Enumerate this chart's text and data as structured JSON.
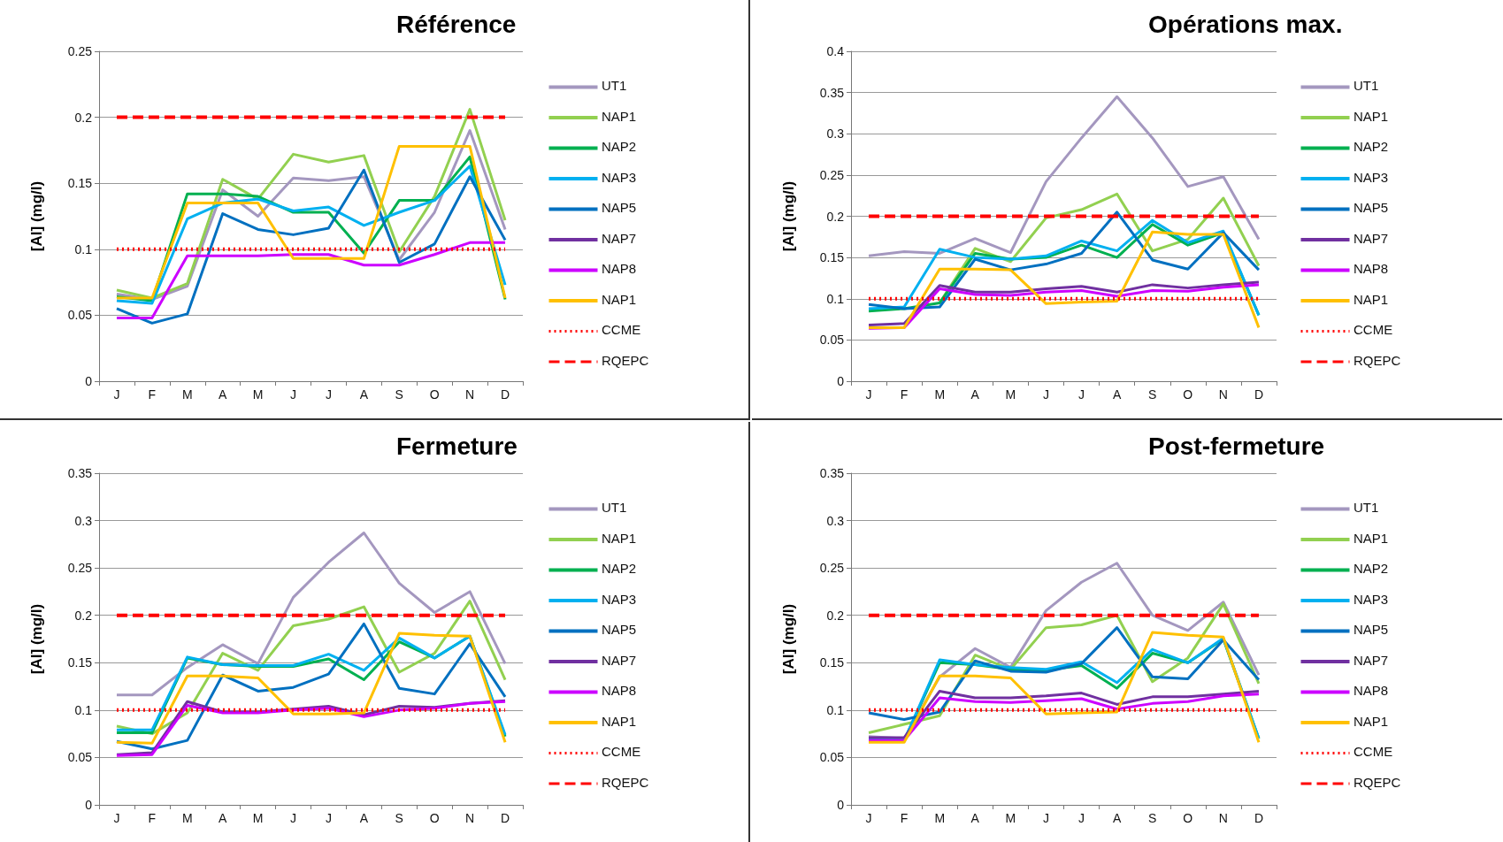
{
  "chart_data": [
    {
      "type": "line",
      "title": "Référence",
      "ylabel": "[Al] (mg/l)",
      "categories": [
        "J",
        "F",
        "M",
        "A",
        "M",
        "J",
        "J",
        "A",
        "S",
        "O",
        "N",
        "D"
      ],
      "ylim": [
        0,
        0.25
      ],
      "yticks": [
        0,
        0.05,
        0.1,
        0.15,
        0.2,
        0.25
      ],
      "grid": "y",
      "legend": "right",
      "series": [
        {
          "name": "UT1",
          "color": "#a497bf",
          "values": [
            0.066,
            0.062,
            0.072,
            0.145,
            0.125,
            0.154,
            0.152,
            0.155,
            0.092,
            0.128,
            0.19,
            0.115
          ]
        },
        {
          "name": "NAP1",
          "color": "#92d050",
          "values": [
            0.069,
            0.063,
            0.074,
            0.153,
            0.138,
            0.172,
            0.166,
            0.171,
            0.098,
            0.14,
            0.206,
            0.122
          ]
        },
        {
          "name": "NAP2",
          "color": "#00b050",
          "values": [
            0.064,
            0.061,
            0.142,
            0.142,
            0.14,
            0.128,
            0.128,
            0.097,
            0.137,
            0.137,
            0.17,
            0.062
          ]
        },
        {
          "name": "NAP3",
          "color": "#00b0f0",
          "values": [
            0.061,
            0.059,
            0.123,
            0.135,
            0.138,
            0.129,
            0.132,
            0.118,
            0.128,
            0.137,
            0.163,
            0.073
          ]
        },
        {
          "name": "NAP5",
          "color": "#0070c0",
          "values": [
            0.055,
            0.044,
            0.051,
            0.127,
            0.115,
            0.111,
            0.116,
            0.16,
            0.09,
            0.104,
            0.155,
            0.107
          ]
        },
        {
          "name": "NAP7",
          "color": "#7030a0",
          "values": [
            null,
            null,
            null,
            null,
            null,
            null,
            null,
            null,
            null,
            null,
            null,
            null
          ]
        },
        {
          "name": "NAP8",
          "color": "#cc00ff",
          "values": [
            0.048,
            0.048,
            0.095,
            0.095,
            0.095,
            0.096,
            0.096,
            0.088,
            0.088,
            0.096,
            0.105,
            0.105
          ]
        },
        {
          "name": "NAP1",
          "color": "#ffc000",
          "values": [
            0.063,
            0.063,
            0.135,
            0.135,
            0.135,
            0.093,
            0.093,
            0.093,
            0.178,
            0.178,
            0.178,
            0.063
          ]
        }
      ],
      "ref_lines": [
        {
          "axis": "y",
          "value": 0.1,
          "label": "CCME",
          "color": "#ff0000",
          "line_style": "dotted"
        },
        {
          "axis": "y",
          "value": 0.2,
          "label": "RQEPC",
          "color": "#ff0000",
          "line_style": "dashed"
        }
      ]
    },
    {
      "type": "line",
      "title": "Opérations max.",
      "ylabel": "[Al] (mg/l)",
      "categories": [
        "J",
        "F",
        "M",
        "A",
        "M",
        "J",
        "J",
        "A",
        "S",
        "O",
        "N",
        "D"
      ],
      "ylim": [
        0,
        0.4
      ],
      "yticks": [
        0,
        0.05,
        0.1,
        0.15,
        0.2,
        0.25,
        0.3,
        0.35,
        0.4
      ],
      "grid": "y",
      "legend": "right",
      "series": [
        {
          "name": "UT1",
          "color": "#a497bf",
          "values": [
            0.152,
            0.157,
            0.155,
            0.173,
            0.156,
            0.242,
            0.295,
            0.345,
            0.295,
            0.236,
            0.248,
            0.172
          ]
        },
        {
          "name": "NAP1",
          "color": "#92d050",
          "values": [
            null,
            null,
            0.095,
            0.161,
            0.145,
            0.198,
            0.208,
            0.227,
            0.158,
            0.172,
            0.222,
            0.14
          ]
        },
        {
          "name": "NAP2",
          "color": "#00b050",
          "values": [
            0.085,
            0.088,
            0.095,
            0.155,
            0.148,
            0.15,
            0.165,
            0.15,
            0.19,
            0.165,
            0.18,
            0.08
          ]
        },
        {
          "name": "NAP3",
          "color": "#00b0f0",
          "values": [
            0.088,
            0.09,
            0.16,
            0.15,
            0.148,
            0.152,
            0.17,
            0.158,
            0.195,
            0.168,
            0.182,
            0.08
          ]
        },
        {
          "name": "NAP5",
          "color": "#0070c0",
          "values": [
            0.093,
            0.088,
            0.09,
            0.148,
            0.135,
            0.142,
            0.155,
            0.205,
            0.147,
            0.136,
            0.18,
            0.135
          ]
        },
        {
          "name": "NAP7",
          "color": "#7030a0",
          "values": [
            0.068,
            0.07,
            0.116,
            0.108,
            0.108,
            0.112,
            0.115,
            0.108,
            0.117,
            0.113,
            0.117,
            0.12
          ]
        },
        {
          "name": "NAP8",
          "color": "#cc00ff",
          "values": [
            0.064,
            0.065,
            0.112,
            0.105,
            0.104,
            0.108,
            0.11,
            0.103,
            0.11,
            0.109,
            0.114,
            0.117
          ]
        },
        {
          "name": "NAP1",
          "color": "#ffc000",
          "values": [
            0.065,
            0.065,
            0.136,
            0.136,
            0.135,
            0.094,
            0.096,
            0.097,
            0.181,
            0.178,
            0.178,
            0.065
          ]
        }
      ],
      "ref_lines": [
        {
          "axis": "y",
          "value": 0.1,
          "label": "CCME",
          "color": "#ff0000",
          "line_style": "dotted"
        },
        {
          "axis": "y",
          "value": 0.2,
          "label": "RQEPC",
          "color": "#ff0000",
          "line_style": "dashed"
        }
      ]
    },
    {
      "type": "line",
      "title": "Fermeture",
      "ylabel": "[Al] (mg/l)",
      "categories": [
        "J",
        "F",
        "M",
        "A",
        "M",
        "J",
        "J",
        "A",
        "S",
        "O",
        "N",
        "D"
      ],
      "ylim": [
        0,
        0.35
      ],
      "yticks": [
        0,
        0.05,
        0.1,
        0.15,
        0.2,
        0.25,
        0.3,
        0.35
      ],
      "grid": "y",
      "legend": "right",
      "series": [
        {
          "name": "UT1",
          "color": "#a497bf",
          "values": [
            0.116,
            0.116,
            0.145,
            0.169,
            0.149,
            0.219,
            0.256,
            0.287,
            0.234,
            0.203,
            0.225,
            0.149
          ]
        },
        {
          "name": "NAP1",
          "color": "#92d050",
          "values": [
            0.083,
            0.075,
            0.097,
            0.16,
            0.142,
            0.189,
            0.196,
            0.209,
            0.14,
            0.16,
            0.215,
            0.132
          ]
        },
        {
          "name": "NAP2",
          "color": "#00b050",
          "values": [
            0.076,
            0.076,
            0.155,
            0.148,
            0.146,
            0.146,
            0.154,
            0.132,
            0.172,
            0.155,
            0.178,
            0.072
          ]
        },
        {
          "name": "NAP3",
          "color": "#00b0f0",
          "values": [
            0.079,
            0.079,
            0.156,
            0.148,
            0.147,
            0.147,
            0.159,
            0.142,
            0.176,
            0.155,
            0.178,
            0.074
          ]
        },
        {
          "name": "NAP5",
          "color": "#0070c0",
          "values": [
            0.067,
            0.059,
            0.068,
            0.137,
            0.12,
            0.124,
            0.138,
            0.191,
            0.123,
            0.117,
            0.17,
            0.114
          ]
        },
        {
          "name": "NAP7",
          "color": "#7030a0",
          "values": [
            0.053,
            0.055,
            0.109,
            0.098,
            0.098,
            0.101,
            0.104,
            0.095,
            0.104,
            0.103,
            0.107,
            0.11
          ]
        },
        {
          "name": "NAP8",
          "color": "#cc00ff",
          "values": [
            0.052,
            0.053,
            0.105,
            0.097,
            0.097,
            0.1,
            0.102,
            0.093,
            0.1,
            0.102,
            0.107,
            0.109
          ]
        },
        {
          "name": "NAP1",
          "color": "#ffc000",
          "values": [
            0.066,
            0.065,
            0.136,
            0.136,
            0.134,
            0.096,
            0.096,
            0.097,
            0.181,
            0.179,
            0.178,
            0.066
          ]
        }
      ],
      "ref_lines": [
        {
          "axis": "y",
          "value": 0.1,
          "label": "CCME",
          "color": "#ff0000",
          "line_style": "dotted"
        },
        {
          "axis": "y",
          "value": 0.2,
          "label": "RQEPC",
          "color": "#ff0000",
          "line_style": "dashed"
        }
      ]
    },
    {
      "type": "line",
      "title": "Post-fermeture",
      "ylabel": "[Al] (mg/l)",
      "categories": [
        "J",
        "F",
        "M",
        "A",
        "M",
        "J",
        "J",
        "A",
        "S",
        "O",
        "N",
        "D"
      ],
      "ylim": [
        0,
        0.35
      ],
      "yticks": [
        0,
        0.05,
        0.1,
        0.15,
        0.2,
        0.25,
        0.3,
        0.35
      ],
      "grid": "y",
      "legend": "right",
      "series": [
        {
          "name": "UT1",
          "color": "#a497bf",
          "values": [
            0.072,
            0.07,
            0.135,
            0.165,
            0.145,
            0.205,
            0.235,
            0.255,
            0.2,
            0.184,
            0.214,
            0.137
          ]
        },
        {
          "name": "NAP1",
          "color": "#92d050",
          "values": [
            0.076,
            null,
            0.094,
            0.158,
            0.143,
            0.187,
            0.19,
            0.2,
            0.13,
            0.155,
            0.212,
            0.128
          ]
        },
        {
          "name": "NAP2",
          "color": "#00b050",
          "values": [
            0.07,
            0.068,
            0.15,
            0.148,
            0.143,
            0.142,
            0.147,
            0.123,
            0.16,
            0.15,
            0.175,
            0.07
          ]
        },
        {
          "name": "NAP3",
          "color": "#00b0f0",
          "values": [
            0.07,
            0.068,
            0.153,
            0.148,
            0.145,
            0.143,
            0.151,
            0.129,
            0.164,
            0.15,
            0.176,
            0.07
          ]
        },
        {
          "name": "NAP5",
          "color": "#0070c0",
          "values": [
            0.097,
            0.09,
            0.098,
            0.152,
            0.141,
            0.14,
            0.149,
            0.187,
            0.135,
            0.133,
            0.174,
            0.132
          ]
        },
        {
          "name": "NAP7",
          "color": "#7030a0",
          "values": [
            0.071,
            0.071,
            0.12,
            0.113,
            0.113,
            0.115,
            0.118,
            0.106,
            0.114,
            0.114,
            0.117,
            0.12
          ]
        },
        {
          "name": "NAP8",
          "color": "#cc00ff",
          "values": [
            0.068,
            0.068,
            0.113,
            0.109,
            0.108,
            0.11,
            0.112,
            0.101,
            0.107,
            0.109,
            0.115,
            0.117
          ]
        },
        {
          "name": "NAP1",
          "color": "#ffc000",
          "values": [
            0.066,
            0.066,
            0.136,
            0.136,
            0.134,
            0.096,
            0.097,
            0.098,
            0.182,
            0.179,
            0.177,
            0.066
          ]
        }
      ],
      "ref_lines": [
        {
          "axis": "y",
          "value": 0.1,
          "label": "CCME",
          "color": "#ff0000",
          "line_style": "dotted"
        },
        {
          "axis": "y",
          "value": 0.2,
          "label": "RQEPC",
          "color": "#ff0000",
          "line_style": "dashed"
        }
      ]
    }
  ]
}
